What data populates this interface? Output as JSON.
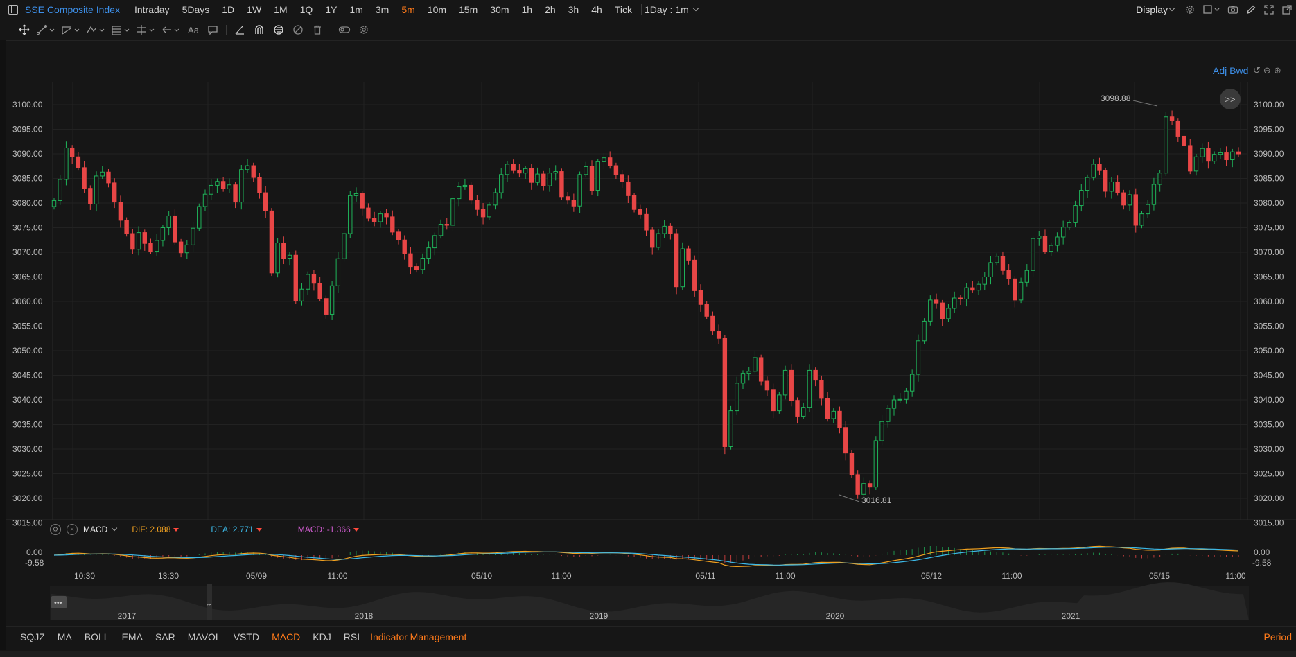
{
  "toolbar": {
    "symbol": "SSE Composite Index",
    "periods": [
      "Intraday",
      "5Days",
      "1D",
      "1W",
      "1M",
      "1Q",
      "1Y",
      "1m",
      "3m",
      "5m",
      "10m",
      "15m",
      "30m",
      "1h",
      "2h",
      "3h",
      "4h",
      "Tick"
    ],
    "active_period": "5m",
    "period_select": "1Day : 1m",
    "display_label": "Display"
  },
  "drawing_tools": [
    "move-cursor-icon",
    "line-tool-icon",
    "channel-tool-icon",
    "pattern-tool-icon",
    "fib-tool-icon",
    "measure-tool-icon",
    "arrow-tool-icon",
    "text-tool-icon",
    "comment-tool-icon",
    "angle-tool-icon",
    "magnet-icon",
    "lock-icon",
    "hide-icon",
    "delete-icon",
    "visibility-icon",
    "settings-icon"
  ],
  "text_tool_label": "Aa",
  "chart": {
    "adj_label": "Adj Bwd",
    "high_label": "3098.88",
    "low_label": "3016.81",
    "price_ticks": [
      "3100.00",
      "3095.00",
      "3090.00",
      "3085.00",
      "3080.00",
      "3075.00",
      "3070.00",
      "3065.00",
      "3060.00",
      "3055.00",
      "3050.00",
      "3045.00",
      "3040.00",
      "3035.00",
      "3030.00",
      "3025.00",
      "3020.00",
      "3015.00"
    ],
    "price_tick_values": [
      3100,
      3095,
      3090,
      3085,
      3080,
      3075,
      3070,
      3065,
      3060,
      3055,
      3050,
      3045,
      3040,
      3035,
      3030,
      3025,
      3020,
      3015
    ],
    "up_color": "#1fb35a",
    "down_color": "#e84646",
    "closes": [
      3080.5,
      3084.8,
      3091.2,
      3089.4,
      3087.2,
      3083.0,
      3079.8,
      3085.5,
      3086.3,
      3084.1,
      3080.2,
      3076.5,
      3073.8,
      3070.6,
      3074.0,
      3071.8,
      3070.2,
      3072.4,
      3075.0,
      3077.4,
      3072.1,
      3069.9,
      3071.5,
      3074.9,
      3079.3,
      3081.8,
      3083.6,
      3084.4,
      3082.9,
      3083.7,
      3080.2,
      3086.8,
      3087.6,
      3085.2,
      3082.1,
      3078.4,
      3065.8,
      3071.9,
      3068.8,
      3069.4,
      3060.1,
      3062.5,
      3065.5,
      3063.7,
      3060.6,
      3057.4,
      3063.2,
      3068.7,
      3073.8,
      3081.5,
      3081.9,
      3079.0,
      3076.9,
      3076.2,
      3077.8,
      3077.2,
      3074.1,
      3072.5,
      3069.7,
      3067.1,
      3066.5,
      3068.8,
      3070.9,
      3073.4,
      3075.7,
      3075.5,
      3080.9,
      3083.3,
      3083.6,
      3080.6,
      3078.7,
      3077.2,
      3079.6,
      3082.1,
      3085.8,
      3087.9,
      3086.6,
      3086.1,
      3087.0,
      3084.2,
      3085.9,
      3083.5,
      3086.1,
      3086.4,
      3081.3,
      3080.6,
      3079.4,
      3085.8,
      3087.4,
      3082.6,
      3088.4,
      3089.2,
      3087.6,
      3085.8,
      3084.3,
      3081.5,
      3078.7,
      3077.7,
      3074.5,
      3071.0,
      3073.8,
      3075.3,
      3073.8,
      3063.0,
      3070.7,
      3068.4,
      3062.2,
      3059.4,
      3057.0,
      3054.0,
      3052.5,
      3030.5,
      3037.8,
      3043.4,
      3045.4,
      3045.8,
      3048.6,
      3043.8,
      3042.0,
      3037.8,
      3041.0,
      3046.0,
      3039.9,
      3036.7,
      3038.5,
      3046.0,
      3044.0,
      3040.3,
      3036.2,
      3037.7,
      3034.4,
      3029.2,
      3024.8,
      3020.8,
      3023.0,
      3022.3,
      3031.7,
      3035.6,
      3038.3,
      3040.0,
      3040.1,
      3041.8,
      3045.2,
      3052.0,
      3056.0,
      3060.3,
      3059.7,
      3056.5,
      3058.6,
      3060.7,
      3060.5,
      3062.8,
      3062.3,
      3063.5,
      3065.0,
      3067.9,
      3069.2,
      3066.3,
      3064.6,
      3060.3,
      3063.9,
      3066.3,
      3072.8,
      3073.3,
      3070.2,
      3071.4,
      3073.1,
      3075.1,
      3076.0,
      3079.5,
      3082.6,
      3085.2,
      3087.9,
      3086.6,
      3082.4,
      3084.3,
      3082.1,
      3079.6,
      3081.7,
      3075.5,
      3077.8,
      3079.7,
      3083.8,
      3086.1,
      3097.5,
      3096.7,
      3093.6,
      3091.7,
      3086.5,
      3089.4,
      3091.1,
      3088.5,
      3089.9,
      3090.2,
      3088.8,
      3090.4,
      3090.0
    ],
    "macd_header": {
      "name": "MACD",
      "dif": "DIF: 2.088",
      "dea": "DEA: 2.771",
      "macd": "MACD: -1.366",
      "dif_color": "#f0a020",
      "dea_color": "#3cb8e6",
      "macd_color": "#d05cd0"
    },
    "macd_axis_top": "0.00",
    "macd_axis_bottom": "-9.58",
    "time_labels": [
      "10:30",
      "13:30",
      "05/09",
      "11:00",
      "05/10",
      "11:00",
      "05/11",
      "11:00",
      "05/12",
      "11:00",
      "05/15",
      "11:00"
    ],
    "year_labels": [
      "2017",
      "2018",
      "2019",
      "2020",
      "2021"
    ]
  },
  "indicators": {
    "tabs": [
      "SQJZ",
      "MA",
      "BOLL",
      "EMA",
      "SAR",
      "MAVOL",
      "VSTD",
      "MACD",
      "KDJ",
      "RSI"
    ],
    "active": "MACD",
    "management": "Indicator Management",
    "period_link": "Period"
  }
}
